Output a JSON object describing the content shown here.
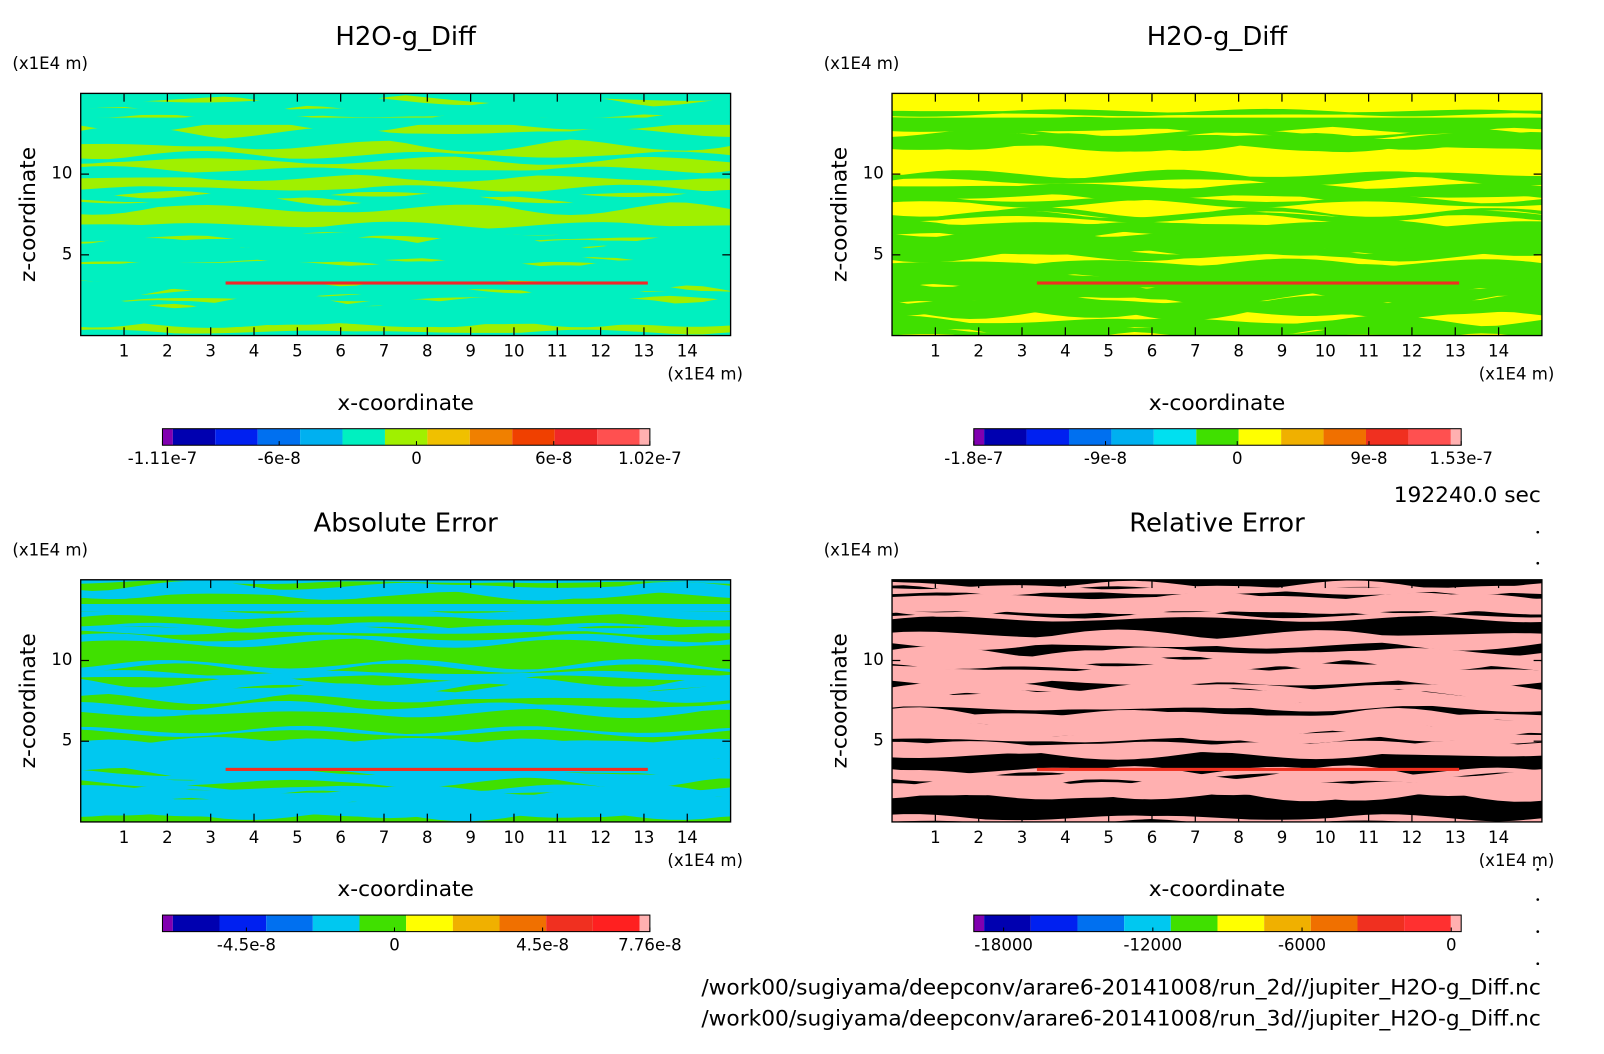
{
  "chart_data": [
    {
      "type": "contour",
      "title": "H2O-g_Diff",
      "x_label": "x-coordinate",
      "y_label": "z-coordinate",
      "x_unit": "(x1E4 m)",
      "y_unit": "(x1E4 m)",
      "xlim": [
        0,
        15
      ],
      "ylim": [
        0,
        15
      ],
      "xticks": [
        1,
        2,
        3,
        4,
        5,
        6,
        7,
        8,
        9,
        10,
        11,
        12,
        13,
        14
      ],
      "yticks": [
        5,
        10
      ],
      "colorbar": {
        "colors": [
          "#8000b0",
          "#0000b0",
          "#0020f0",
          "#0070f0",
          "#00b0f0",
          "#00f0c0",
          "#a0f000",
          "#f0c000",
          "#f08000",
          "#f04000",
          "#f02828",
          "#ff5050",
          "#ffb0b0"
        ],
        "lim": [
          -1.11e-07,
          1.02e-07
        ],
        "ticks": [
          -1.11e-07,
          -6e-08,
          0,
          6e-08,
          1.02e-07
        ]
      }
    },
    {
      "type": "contour",
      "title": "H2O-g_Diff",
      "x_label": "x-coordinate",
      "y_label": "z-coordinate",
      "x_unit": "(x1E4 m)",
      "y_unit": "(x1E4 m)",
      "xlim": [
        0,
        15
      ],
      "ylim": [
        0,
        15
      ],
      "xticks": [
        1,
        2,
        3,
        4,
        5,
        6,
        7,
        8,
        9,
        10,
        11,
        12,
        13,
        14
      ],
      "yticks": [
        5,
        10
      ],
      "colorbar": {
        "colors": [
          "#8000b0",
          "#0000b0",
          "#0020f0",
          "#0070f0",
          "#00b0f0",
          "#00e0f0",
          "#40e000",
          "#ffff00",
          "#f0b000",
          "#f07000",
          "#f03020",
          "#ff5050",
          "#ffb0b0"
        ],
        "lim": [
          -1.8e-07,
          1.53e-07
        ],
        "ticks": [
          -1.8e-07,
          -9e-08,
          0,
          9e-08,
          1.53e-07
        ]
      }
    },
    {
      "type": "contour",
      "title": "Absolute Error",
      "x_label": "x-coordinate",
      "y_label": "z-coordinate",
      "x_unit": "(x1E4 m)",
      "y_unit": "(x1E4 m)",
      "xlim": [
        0,
        15
      ],
      "ylim": [
        0,
        15
      ],
      "xticks": [
        1,
        2,
        3,
        4,
        5,
        6,
        7,
        8,
        9,
        10,
        11,
        12,
        13,
        14
      ],
      "yticks": [
        5,
        10
      ],
      "colorbar": {
        "colors": [
          "#8000b0",
          "#0000b0",
          "#0020f0",
          "#0070f0",
          "#00c8f0",
          "#40e000",
          "#ffff00",
          "#f0b000",
          "#f07000",
          "#f03020",
          "#ff2020",
          "#ffb0b0"
        ],
        "lim": [
          -7.05e-08,
          7.76e-08
        ],
        "ticks": [
          -4.5e-08,
          0,
          4.5e-08,
          7.76e-08
        ]
      }
    },
    {
      "type": "contour",
      "title": "Relative Error",
      "x_label": "x-coordinate",
      "y_label": "z-coordinate",
      "x_unit": "(x1E4 m)",
      "y_unit": "(x1E4 m)",
      "xlim": [
        0,
        15
      ],
      "ylim": [
        0,
        15
      ],
      "xticks": [
        1,
        2,
        3,
        4,
        5,
        6,
        7,
        8,
        9,
        10,
        11,
        12,
        13,
        14
      ],
      "yticks": [
        5,
        10
      ],
      "colorbar": {
        "colors": [
          "#8000b0",
          "#0000b0",
          "#0020f0",
          "#0070f0",
          "#00c8f0",
          "#40e000",
          "#ffff00",
          "#f0b000",
          "#f07000",
          "#f03020",
          "#ff3030",
          "#ffb0b0"
        ],
        "lim": [
          -19200,
          400
        ],
        "ticks": [
          -18000,
          -12000,
          -6000,
          0
        ]
      }
    }
  ],
  "time": "192240.0 sec",
  "files": [
    "/work00/sugiyama/deepconv/arare6-20141008/run_2d//jupiter_H2O-g_Diff.nc",
    "/work00/sugiyama/deepconv/arare6-20141008/run_3d//jupiter_H2O-g_Diff.nc"
  ]
}
